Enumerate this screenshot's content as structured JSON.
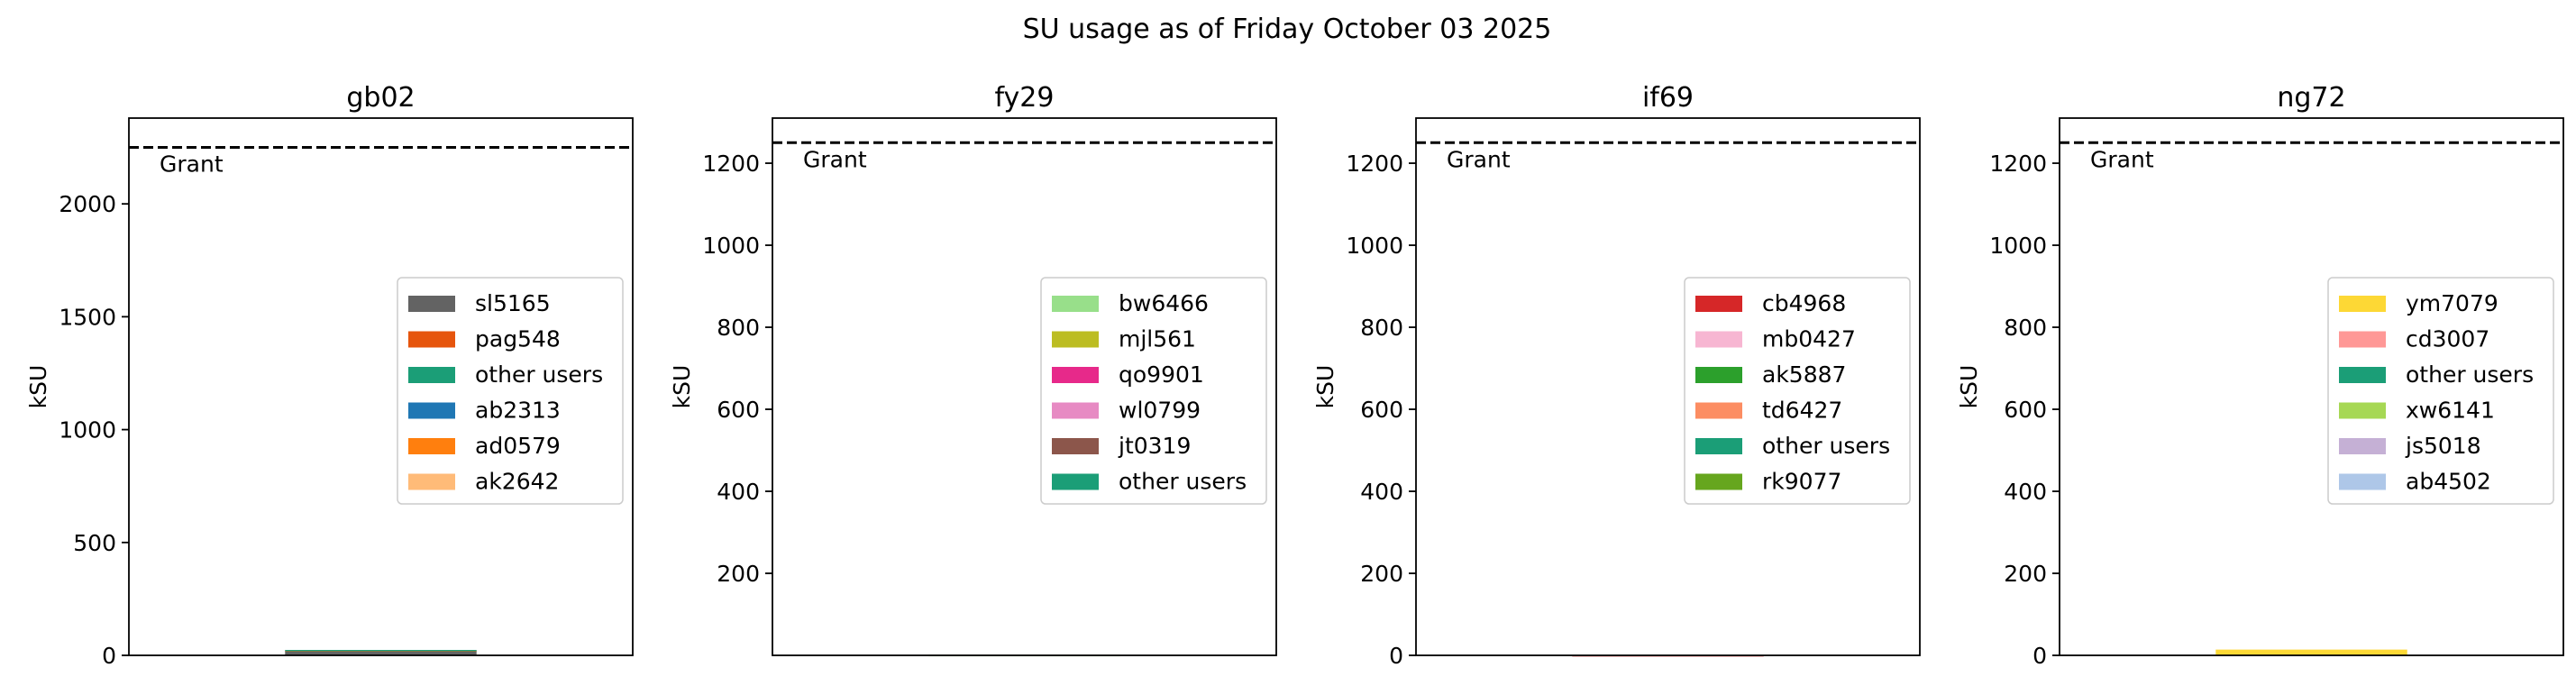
{
  "chart_data": {
    "title": "SU usage as of Friday October 03 2025",
    "type": "bar",
    "colors": {
      "sl5165": "#636363",
      "pag548": "#e6550d",
      "other users": "#1b9e77",
      "ab2313": "#1f77b4",
      "ad0579": "#ff7f0e",
      "ak2642": "#ffbb78",
      "bw6466": "#98df8a",
      "mjl561": "#bcbd22",
      "qo9901": "#e7298a",
      "wl0799": "#e78ac3",
      "jt0319": "#8c564b",
      "cb4968": "#d62728",
      "mb0427": "#f7b6d2",
      "ak5887": "#2ca02c",
      "td6427": "#fc8d62",
      "rk9077": "#66a61e",
      "ym7079": "#fdd835",
      "cd3007": "#ff9896",
      "xw6141": "#a6d854",
      "js5018": "#c5b0d5",
      "ab4502": "#aec7e8"
    },
    "panels": [
      {
        "title": "gb02",
        "ylabel": "kSU",
        "ylim": [
          0,
          2380
        ],
        "yticks": [
          0,
          500,
          1000,
          1500,
          2000
        ],
        "grant": 2250,
        "grant_label": "Grant",
        "legend": [
          "sl5165",
          "pag548",
          "other users",
          "ab2313",
          "ad0579",
          "ak2642"
        ],
        "stack": [
          {
            "user": "sl5165",
            "value": 18
          },
          {
            "user": "pag548",
            "value": 4
          },
          {
            "user": "other users",
            "value": 2
          }
        ]
      },
      {
        "title": "fy29",
        "ylabel": "kSU",
        "ylim": [
          0,
          1310
        ],
        "yticks": [
          200,
          400,
          600,
          800,
          1000,
          1200
        ],
        "grant": 1250,
        "grant_label": "Grant",
        "legend": [
          "bw6466",
          "mjl561",
          "qo9901",
          "wl0799",
          "jt0319",
          "other users"
        ],
        "stack": [
          {
            "user": "bw6466",
            "value": 1
          },
          {
            "user": "mjl561",
            "value": 0.5
          }
        ]
      },
      {
        "title": "if69",
        "ylabel": "kSU",
        "ylim": [
          0,
          1310
        ],
        "yticks": [
          0,
          200,
          400,
          600,
          800,
          1000,
          1200
        ],
        "grant": 1250,
        "grant_label": "Grant",
        "legend": [
          "cb4968",
          "mb0427",
          "ak5887",
          "td6427",
          "other users",
          "rk9077"
        ],
        "stack": [
          {
            "user": "cb4968",
            "value": 0.5
          }
        ]
      },
      {
        "title": "ng72",
        "ylabel": "kSU",
        "ylim": [
          0,
          1310
        ],
        "yticks": [
          0,
          200,
          400,
          600,
          800,
          1000,
          1200
        ],
        "grant": 1250,
        "grant_label": "Grant",
        "legend": [
          "ym7079",
          "cd3007",
          "other users",
          "xw6141",
          "js5018",
          "ab4502"
        ],
        "stack": [
          {
            "user": "ym7079",
            "value": 14
          }
        ]
      }
    ]
  }
}
